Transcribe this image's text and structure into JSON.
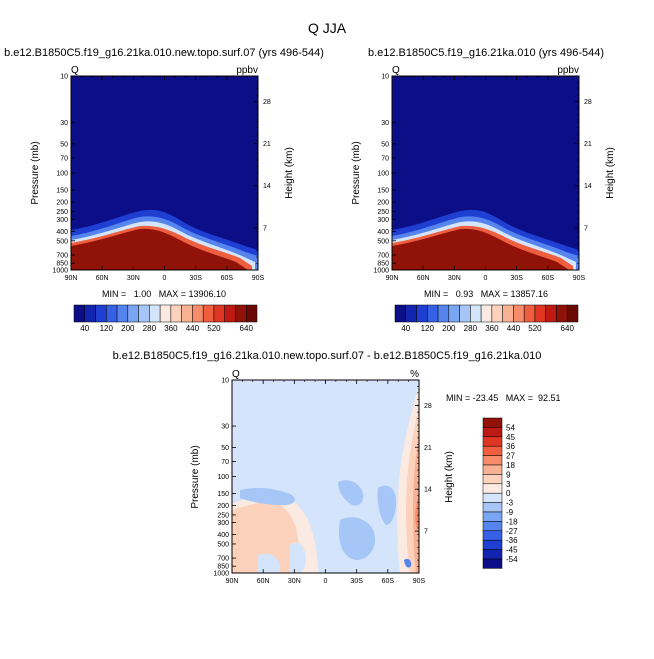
{
  "main_title": "Q JJA",
  "chart_data": [
    {
      "type": "heatmap",
      "title": "b.e12.B1850C5.f19_g16.21ka.010.new.topo.surf.07 (yrs 496-544)",
      "left_label": "Q",
      "right_label": "ppbv",
      "ylabel": "Pressure (mb)",
      "ylabel_right": "Height (km)",
      "x_ticks": [
        "90N",
        "60N",
        "30N",
        "0",
        "30S",
        "60S",
        "90S"
      ],
      "y_ticks": [
        "10",
        "30",
        "50",
        "70",
        "100",
        "150",
        "200",
        "250",
        "300",
        "400",
        "500",
        "700",
        "850",
        "1000"
      ],
      "y_ticks_right": [
        "28",
        "21",
        "14",
        "7"
      ],
      "ylim": [
        1000,
        10
      ],
      "min_text": "MIN =   1.00   MAX = 13906.10",
      "min": 1.0,
      "max": 13906.1,
      "colorbar_ticks": [
        "40",
        "120",
        "200",
        "280",
        "360",
        "440",
        "520",
        "640"
      ],
      "colorbar_levels": [
        20,
        40,
        80,
        120,
        160,
        200,
        240,
        280,
        320,
        360,
        400,
        440,
        480,
        520,
        560,
        640
      ],
      "colors": [
        "#0b0e86",
        "#1324b0",
        "#1f3fd3",
        "#3660e6",
        "#5584ee",
        "#7aa5f3",
        "#a6c6f7",
        "#d4e5fb",
        "#fbeae2",
        "#fcd2bd",
        "#f9b193",
        "#f68c69",
        "#ef5f3f",
        "#df3623",
        "#bf1914",
        "#901209",
        "#6b0a05"
      ]
    },
    {
      "type": "heatmap",
      "title": "b.e12.B1850C5.f19_g16.21ka.010 (yrs 496-544)",
      "left_label": "Q",
      "right_label": "ppbv",
      "ylabel": "Pressure (mb)",
      "ylabel_right": "Height (km)",
      "x_ticks": [
        "90N",
        "60N",
        "30N",
        "0",
        "30S",
        "60S",
        "90S"
      ],
      "y_ticks": [
        "10",
        "30",
        "50",
        "70",
        "100",
        "150",
        "200",
        "250",
        "300",
        "400",
        "500",
        "700",
        "850",
        "1000"
      ],
      "y_ticks_right": [
        "28",
        "21",
        "14",
        "7"
      ],
      "ylim": [
        1000,
        10
      ],
      "min_text": "MIN =   0.93   MAX = 13857.16",
      "min": 0.93,
      "max": 13857.16,
      "colorbar_ticks": [
        "40",
        "120",
        "200",
        "280",
        "360",
        "440",
        "520",
        "640"
      ]
    },
    {
      "type": "heatmap",
      "title": "b.e12.B1850C5.f19_g16.21ka.010.new.topo.surf.07 - b.e12.B1850C5.f19_g16.21ka.010",
      "left_label": "Q",
      "right_label": "%",
      "ylabel": "Pressure (mb)",
      "ylabel_right": "Height (km)",
      "x_ticks": [
        "90N",
        "60N",
        "30N",
        "0",
        "30S",
        "60S",
        "90S"
      ],
      "y_ticks": [
        "10",
        "30",
        "50",
        "70",
        "100",
        "150",
        "200",
        "250",
        "300",
        "400",
        "500",
        "700",
        "850",
        "1000"
      ],
      "y_ticks_right": [
        "28",
        "21",
        "14",
        "7"
      ],
      "ylim": [
        1000,
        10
      ],
      "min_text": "MIN = -23.45   MAX =  92.51",
      "min": -23.45,
      "max": 92.51,
      "colorbar_ticks": [
        "54",
        "45",
        "36",
        "27",
        "18",
        "9",
        "3",
        "0",
        "-3",
        "-9",
        "-18",
        "-27",
        "-36",
        "-45",
        "-54"
      ],
      "colors": [
        "#0b0e86",
        "#1324b0",
        "#1f3fd3",
        "#3660e6",
        "#5584ee",
        "#7aa5f3",
        "#a6c6f7",
        "#d4e5fb",
        "#fbeae2",
        "#fcd2bd",
        "#f9b193",
        "#f68c69",
        "#ef5f3f",
        "#df3623",
        "#bf1914",
        "#901209"
      ]
    }
  ]
}
